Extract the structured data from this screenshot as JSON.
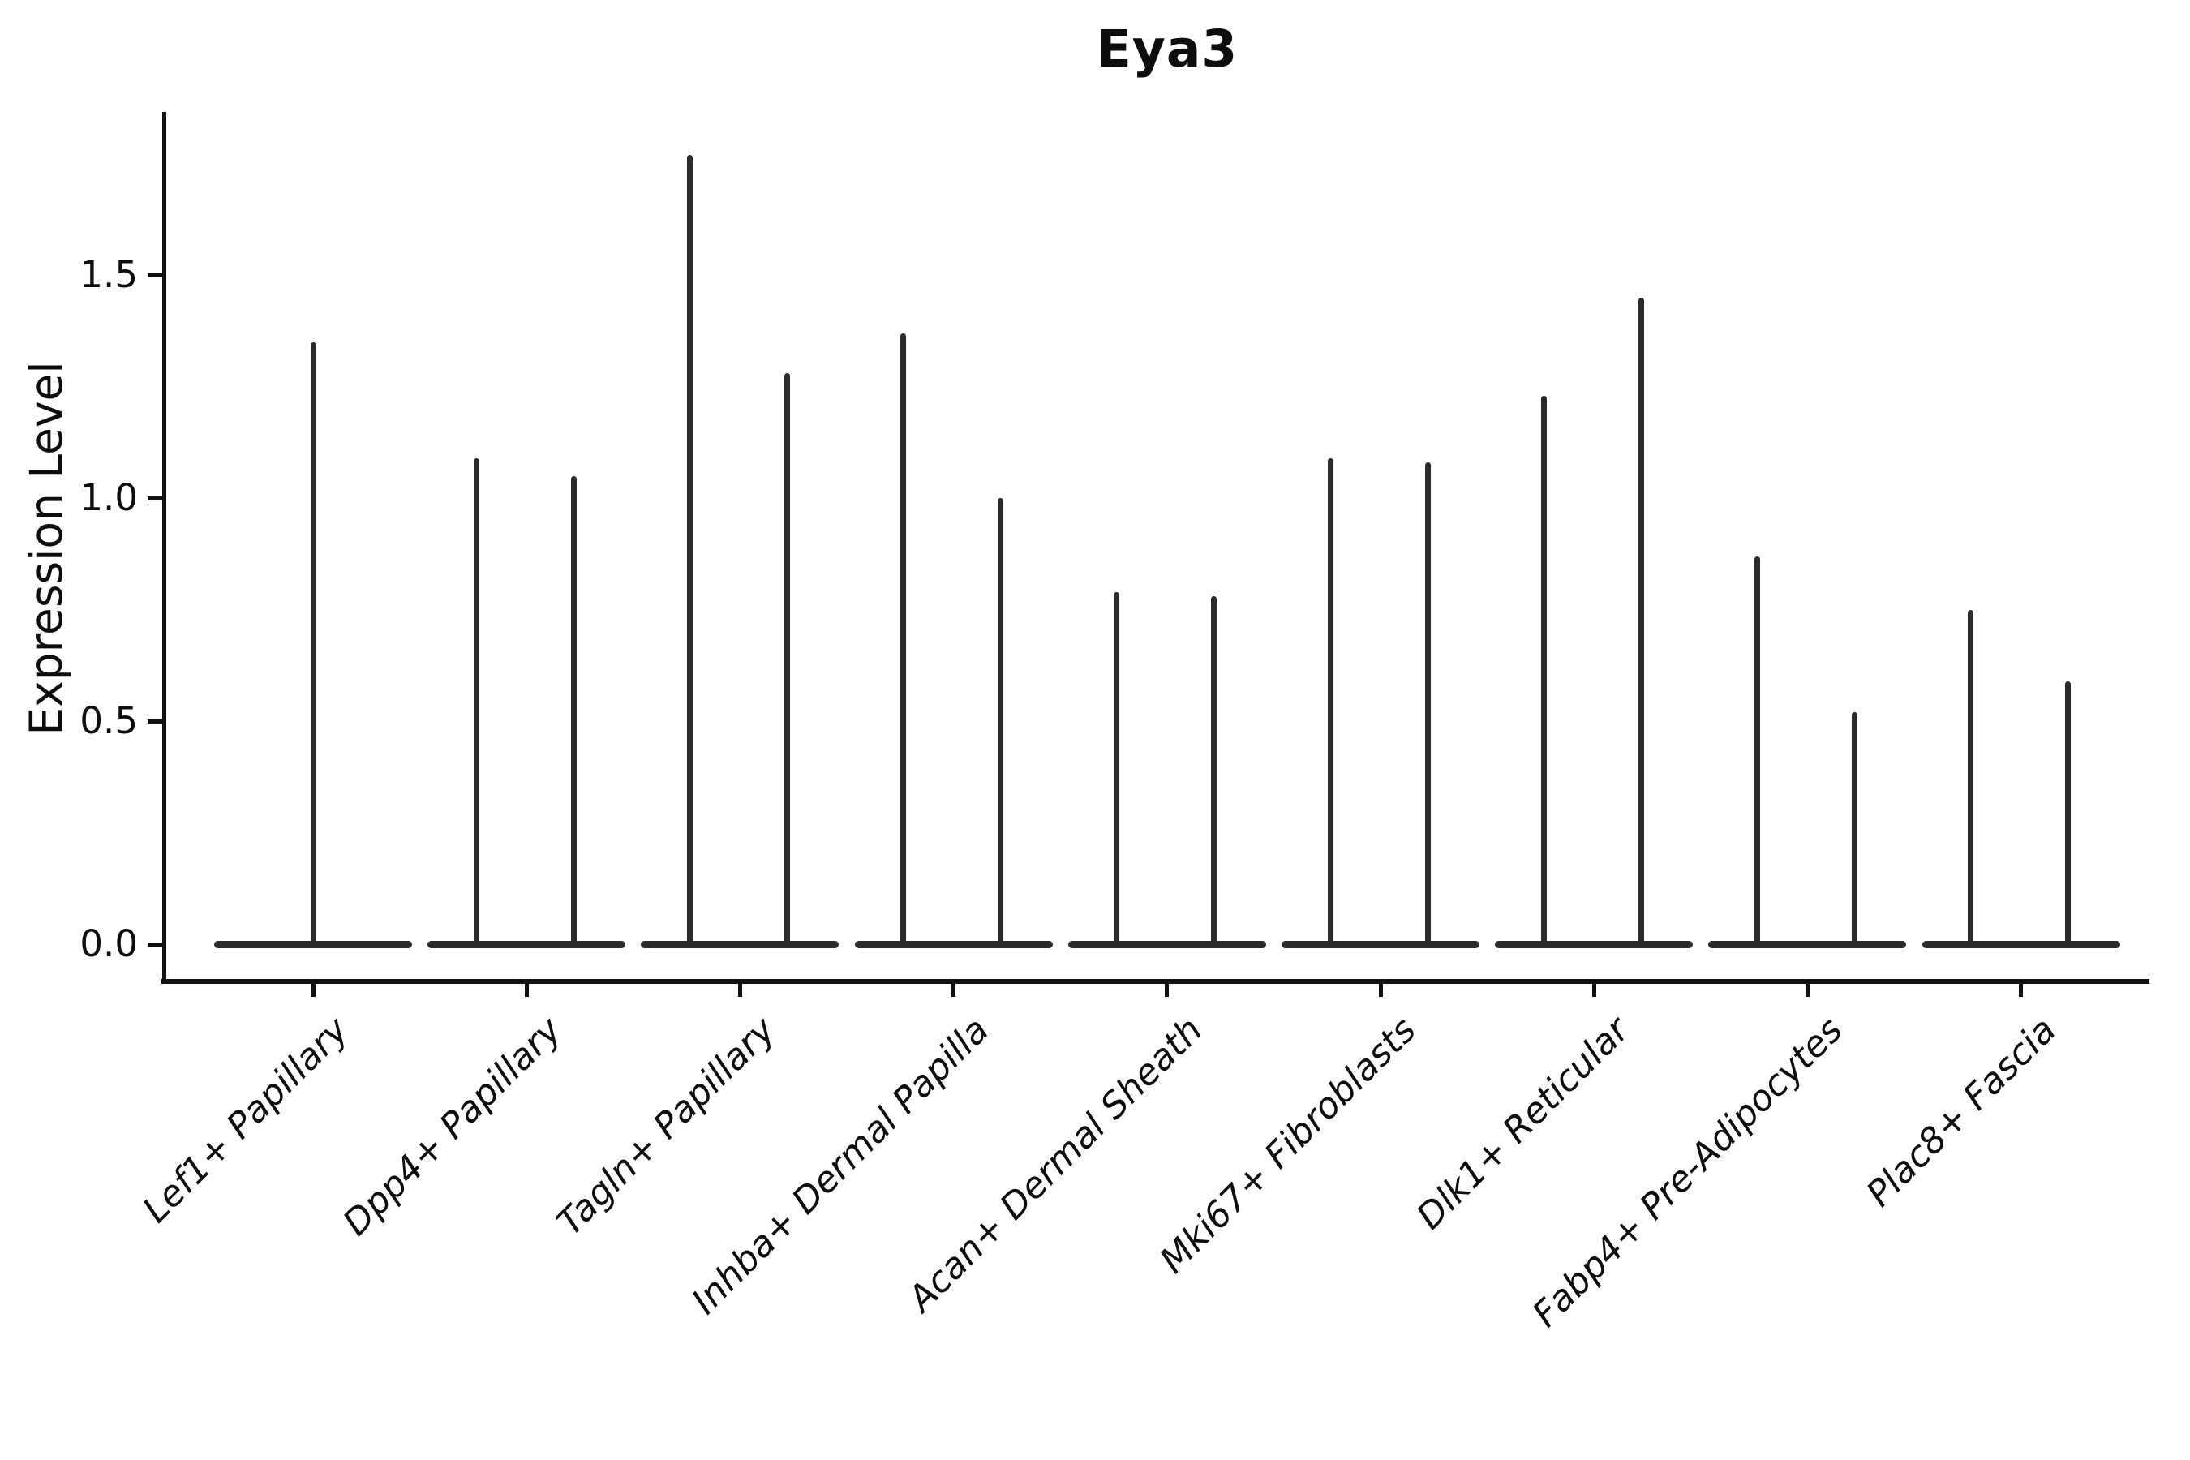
{
  "title": "Eya3",
  "axes": {
    "ylabel": "Expression Level",
    "ytick_labels": [
      "0.0",
      "0.5",
      "1.0",
      "1.5"
    ]
  },
  "chart_data": {
    "type": "violin",
    "title": "Eya3",
    "xlabel": "",
    "ylabel": "Expression Level",
    "ylim": [
      -0.08,
      1.87
    ],
    "yticks": [
      0,
      0.5,
      1.0,
      1.5
    ],
    "grid": false,
    "legend": "none",
    "style_note": "Near-all density at zero: each violin renders as a wide flat dark bar at y=0 plus a thin vertical spike reaching the maximum expression value; first category has a single centered spike, all others have two spikes (two violins side by side)",
    "categories": [
      "Lef1+ Papillary",
      "Dpp4+ Papillary",
      "Tagln+ Papillary",
      "Inhba+ Dermal Papilla",
      "Acan+ Dermal Sheath",
      "Mki67+ Fibroblasts",
      "Dlk1+ Reticular",
      "Fabp4+ Pre-Adipocytes",
      "Plac8+ Fascia"
    ],
    "series": [
      {
        "category": "Lef1+ Papillary",
        "spike_maxima": [
          1.35
        ]
      },
      {
        "category": "Dpp4+ Papillary",
        "spike_maxima": [
          1.09,
          1.05
        ]
      },
      {
        "category": "Tagln+ Papillary",
        "spike_maxima": [
          1.77,
          1.28
        ]
      },
      {
        "category": "Inhba+ Dermal Papilla",
        "spike_maxima": [
          1.37,
          1.0
        ]
      },
      {
        "category": "Acan+ Dermal Sheath",
        "spike_maxima": [
          0.79,
          0.78
        ]
      },
      {
        "category": "Mki67+ Fibroblasts",
        "spike_maxima": [
          1.09,
          1.08
        ]
      },
      {
        "category": "Dlk1+ Reticular",
        "spike_maxima": [
          1.23,
          1.45
        ]
      },
      {
        "category": "Fabp4+ Pre-Adipocytes",
        "spike_maxima": [
          0.87,
          0.52
        ]
      },
      {
        "category": "Plac8+ Fascia",
        "spike_maxima": [
          0.75,
          0.59
        ]
      }
    ],
    "violin_color": "#2b2b2b",
    "axis_color": "#111111",
    "text_color": "#0d0d0d",
    "background_color": "#ffffff"
  }
}
